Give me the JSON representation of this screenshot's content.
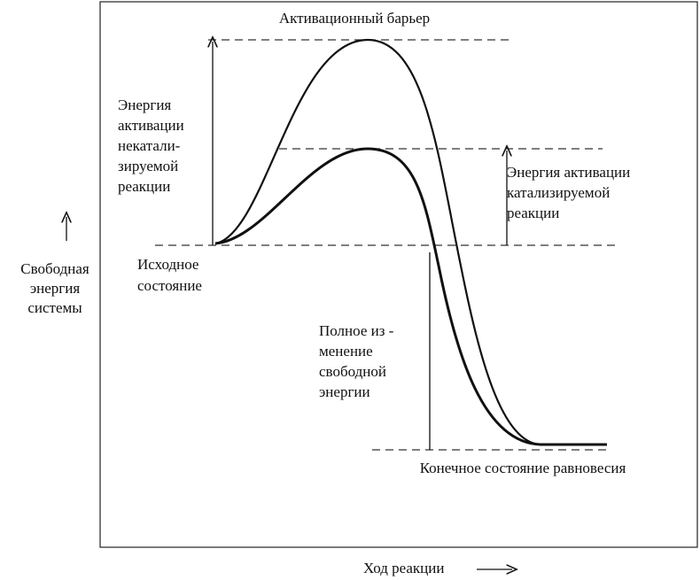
{
  "title": "Активационный барьер",
  "labels": {
    "uncatalyzed_energy": [
      "Энергия",
      "активации",
      "некатали-",
      "зируемой",
      "реакции"
    ],
    "catalyzed_energy": [
      "Энергия активации",
      "катализируемой",
      "реакции"
    ],
    "y_axis": [
      "Свободная",
      "энергия",
      "системы"
    ],
    "initial_state": [
      "Исходное",
      "состояние"
    ],
    "total_change": [
      "Полное из -",
      "менение",
      "свободной",
      "энергии"
    ],
    "final_state": "Конечное состояние равновесия",
    "x_axis": "Ход реакции"
  }
}
